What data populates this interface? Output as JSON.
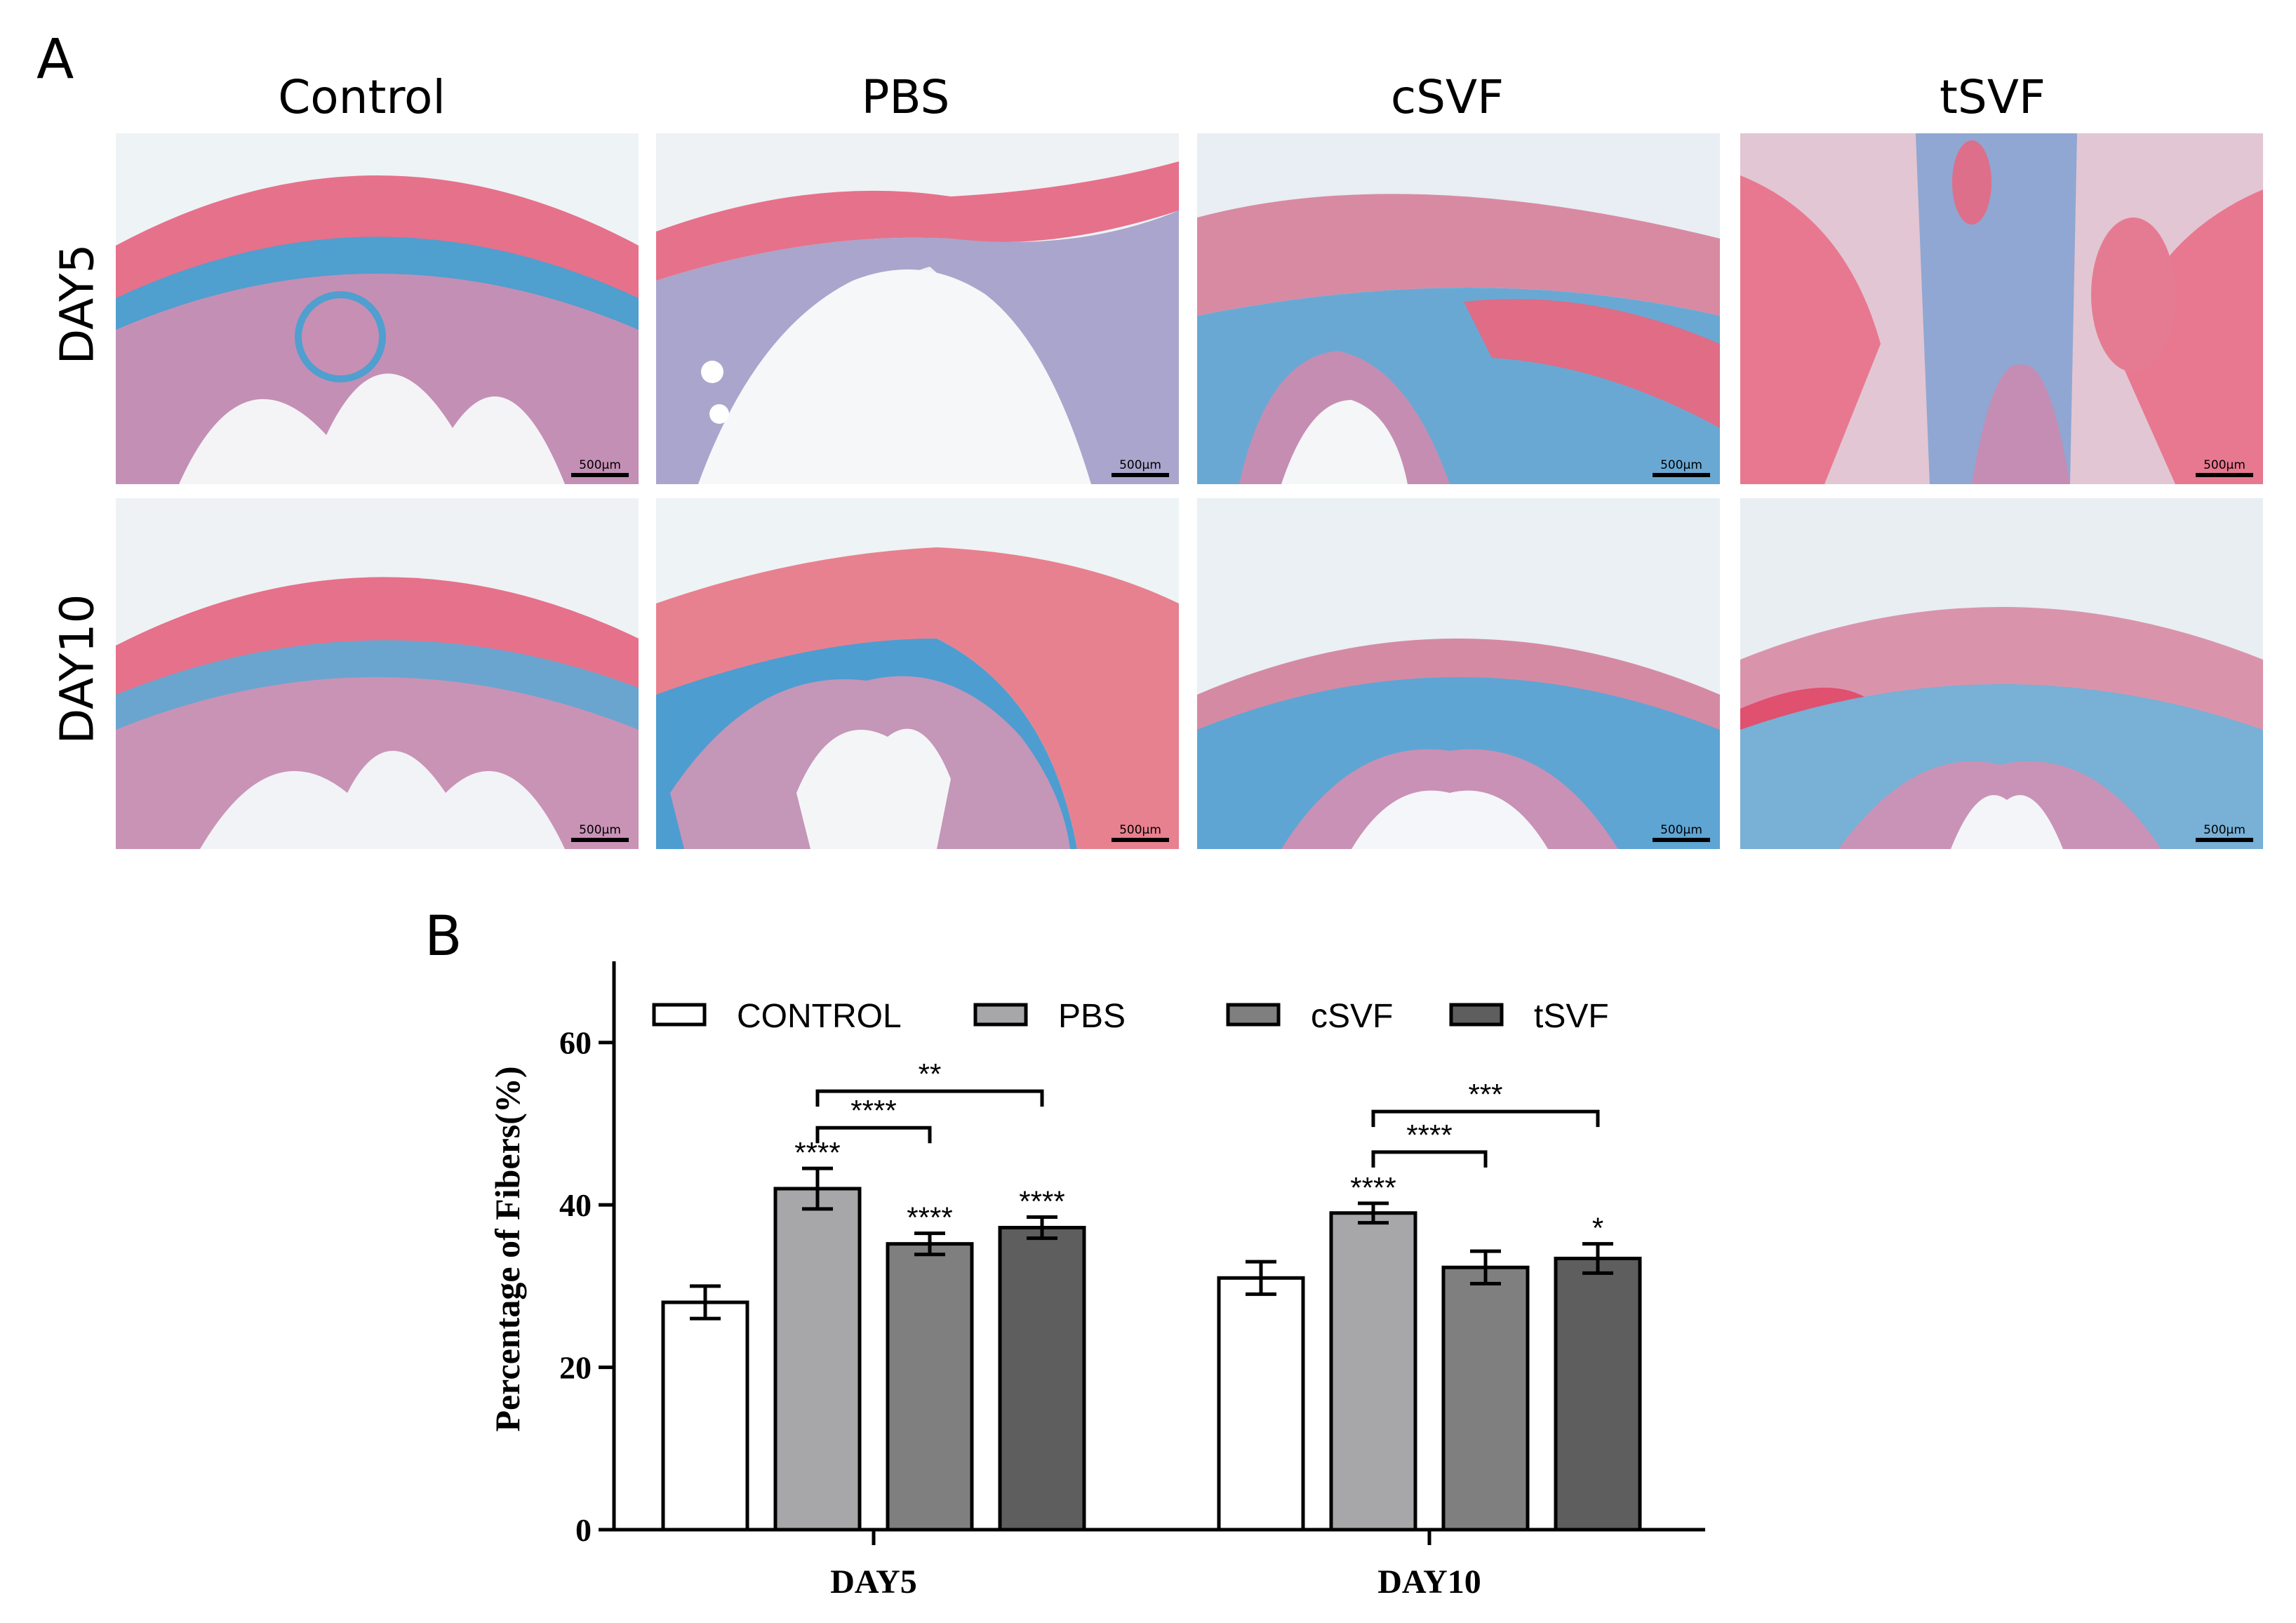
{
  "panel_a": {
    "label": "A",
    "columns": [
      "Control",
      "PBS",
      "cSVF",
      "tSVF"
    ],
    "rows": [
      "DAY5",
      "DAY10"
    ],
    "scale_bar_label": "500μm",
    "stain_colors": {
      "muscle": "#e66a86",
      "collagen": "#4a9ccc",
      "mucosa": "#c891b4",
      "background": "#e9eff3"
    }
  },
  "panel_b": {
    "label": "B"
  },
  "chart_data": {
    "type": "bar",
    "ylabel": "Percentage of Fibers(%)",
    "xlabel": "",
    "ylim": [
      0,
      70
    ],
    "yticks": [
      0,
      20,
      40,
      60
    ],
    "categories": [
      "DAY5",
      "DAY10"
    ],
    "legend_position": "top",
    "series": [
      {
        "name": "CONTROL",
        "color": "#ffffff",
        "values": [
          28,
          31
        ],
        "errors": [
          2,
          2
        ],
        "labels": [
          "",
          ""
        ]
      },
      {
        "name": "PBS",
        "color": "#a7a7a9",
        "values": [
          42,
          39
        ],
        "errors": [
          2.5,
          1.2
        ],
        "labels": [
          "****",
          "****"
        ]
      },
      {
        "name": "cSVF",
        "color": "#7f7f7f",
        "values": [
          35.2,
          32.3
        ],
        "errors": [
          1.3,
          2
        ],
        "labels": [
          "****",
          ""
        ]
      },
      {
        "name": "tSVF",
        "color": "#5e5e5e",
        "values": [
          37.2,
          33.4
        ],
        "errors": [
          1.3,
          1.8
        ],
        "labels": [
          "****",
          "*"
        ]
      }
    ],
    "comparisons": [
      {
        "group": 0,
        "from_series": 1,
        "to_series": 3,
        "label": "**",
        "y": 54
      },
      {
        "group": 0,
        "from_series": 1,
        "to_series": 2,
        "label": "****",
        "y": 49.5
      },
      {
        "group": 1,
        "from_series": 1,
        "to_series": 3,
        "label": "***",
        "y": 51.5
      },
      {
        "group": 1,
        "from_series": 1,
        "to_series": 2,
        "label": "****",
        "y": 46.5
      }
    ]
  }
}
